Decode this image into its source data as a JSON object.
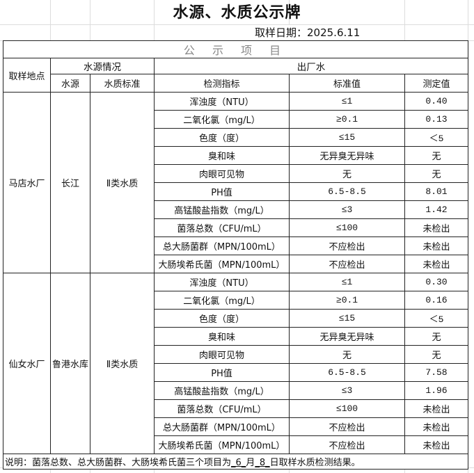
{
  "title": "水源、水质公示牌",
  "sample_date": "取样日期：2025.6.11",
  "banner": "公 示 项 目",
  "headers": {
    "location": "取样地点",
    "source_group": "水源情况",
    "outlet_group": "出厂水",
    "source": "水源",
    "standard": "水质标准",
    "indicator": "检测指标",
    "limit": "标准值",
    "measured": "测定值"
  },
  "plants": [
    {
      "location": "马店水厂",
      "source": "长江",
      "standard": "Ⅱ类水质",
      "rows": [
        [
          "浑浊度（NTU）",
          "≤1",
          "0.40"
        ],
        [
          "二氧化氯（mg/L）",
          "≥0.1",
          "0.13"
        ],
        [
          "色度（度）",
          "≤15",
          "＜5"
        ],
        [
          "臭和味",
          "无异臭无异味",
          "无"
        ],
        [
          "肉眼可见物",
          "无",
          "无"
        ],
        [
          "PH值",
          "6.5-8.5",
          "8.01"
        ],
        [
          "高锰酸盐指数（mg/L）",
          "≤3",
          "1.42"
        ],
        [
          "菌落总数（CFU/mL）",
          "≤100",
          "未检出"
        ],
        [
          "总大肠菌群（MPN/100mL）",
          "不应检出",
          "未检出"
        ],
        [
          "大肠埃希氏菌（MPN/100mL）",
          "不应检出",
          "未检出"
        ]
      ]
    },
    {
      "location": "仙女水厂",
      "source": "鲁港水库",
      "standard": "Ⅱ类水质",
      "rows": [
        [
          "浑浊度（NTU）",
          "≤1",
          "0.30"
        ],
        [
          "二氧化氯（mg/L）",
          "≥0.1",
          "0.16"
        ],
        [
          "色度（度）",
          "≤15",
          "＜5"
        ],
        [
          "臭和味",
          "无异臭无异味",
          "无"
        ],
        [
          "肉眼可见物",
          "无",
          "无"
        ],
        [
          "PH值",
          "6.5-8.5",
          "7.58"
        ],
        [
          "高锰酸盐指数（mg/L）",
          "≤3",
          "1.96"
        ],
        [
          "菌落总数（CFU/mL）",
          "≤100",
          "未检出"
        ],
        [
          "总大肠菌群（MPN/100mL）",
          "不应检出",
          "未检出"
        ],
        [
          "大肠埃希氏菌（MPN/100mL）",
          "不应检出",
          "未检出"
        ]
      ]
    }
  ],
  "note": {
    "prefix": "说明：菌落总数、总大肠菌群、大肠埃希氏菌三个项目为",
    "month": "_6_",
    "month_label": "月",
    "day": "_8_",
    "suffix": "日取样水质检测结果。"
  }
}
